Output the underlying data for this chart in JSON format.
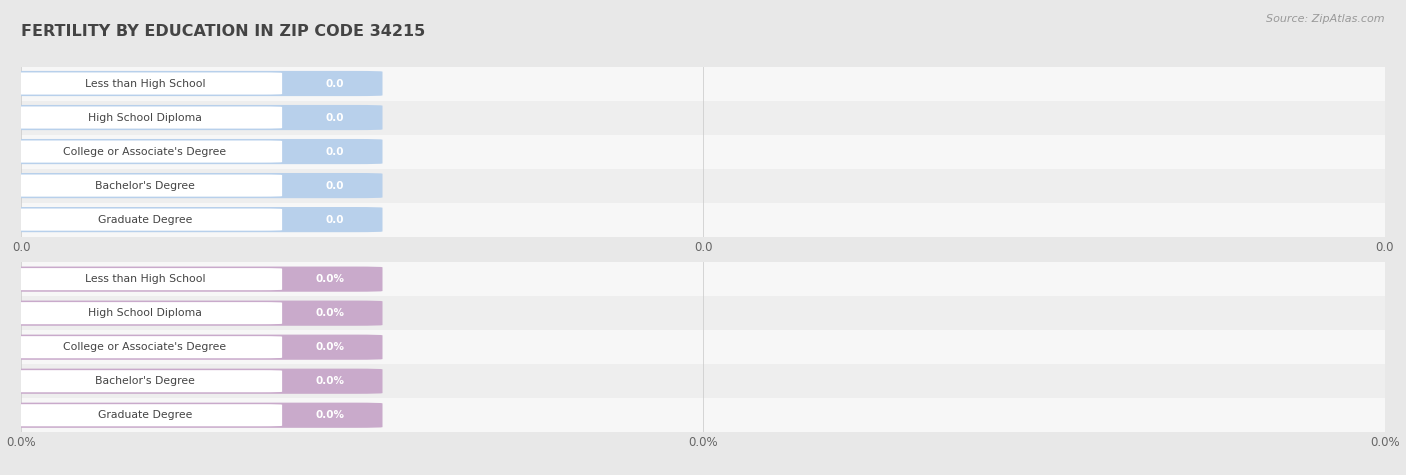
{
  "title": "FERTILITY BY EDUCATION IN ZIP CODE 34215",
  "source": "Source: ZipAtlas.com",
  "categories": [
    "Less than High School",
    "High School Diploma",
    "College or Associate's Degree",
    "Bachelor's Degree",
    "Graduate Degree"
  ],
  "top_values": [
    0.0,
    0.0,
    0.0,
    0.0,
    0.0
  ],
  "bottom_values": [
    0.0,
    0.0,
    0.0,
    0.0,
    0.0
  ],
  "top_bar_color": "#b8d0eb",
  "bottom_bar_color": "#c9aacb",
  "top_xlabel_values": [
    "0.0",
    "0.0",
    "0.0"
  ],
  "bottom_xlabel_values": [
    "0.0%",
    "0.0%",
    "0.0%"
  ],
  "title_color": "#444444",
  "source_color": "#999999",
  "grid_color": "#cccccc",
  "row_even_color": "#f7f7f7",
  "row_odd_color": "#eeeeee",
  "fig_bg": "#e8e8e8"
}
